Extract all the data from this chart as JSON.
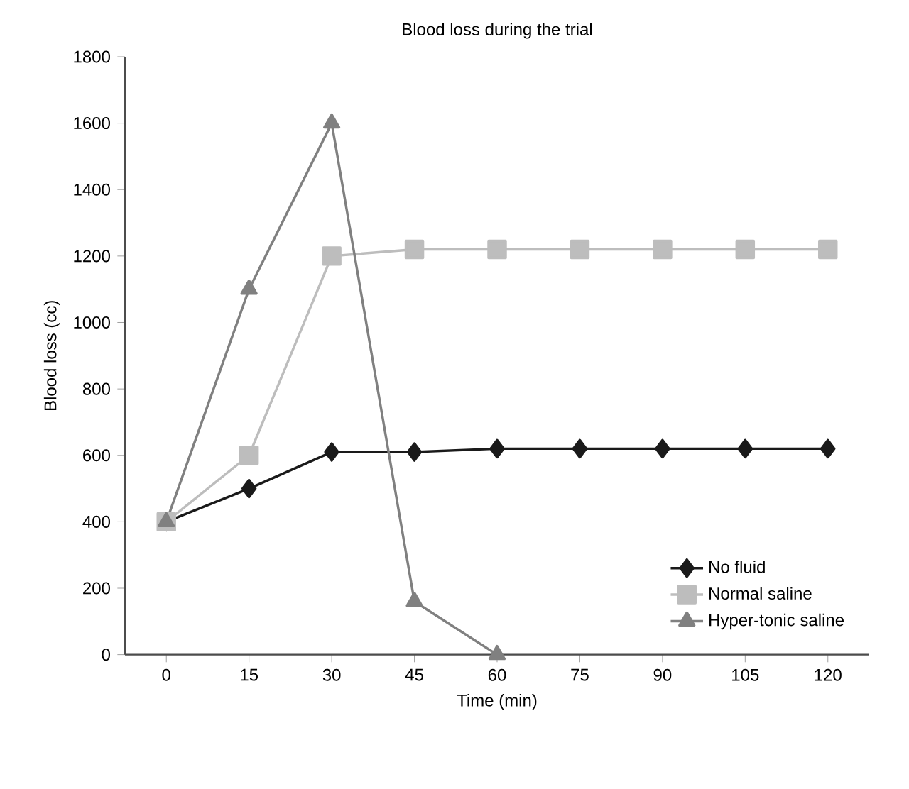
{
  "chart_data": {
    "type": "line",
    "title": "Blood loss during the trial",
    "xlabel": "Time (min)",
    "ylabel": "Blood loss (cc)",
    "categories": [
      "0",
      "15",
      "30",
      "45",
      "60",
      "75",
      "90",
      "105",
      "120"
    ],
    "series": [
      {
        "name": "No fluid",
        "color": "#1a1a1a",
        "marker": "diamond",
        "values": [
          400,
          500,
          610,
          610,
          620,
          620,
          620,
          620,
          620
        ]
      },
      {
        "name": "Normal saline",
        "color": "#bdbdbd",
        "marker": "square",
        "values": [
          400,
          600,
          1200,
          1220,
          1220,
          1220,
          1220,
          1220,
          1220
        ]
      },
      {
        "name": "Hyper-tonic saline",
        "color": "#808080",
        "marker": "triangle",
        "values": [
          400,
          1100,
          1600,
          160,
          0,
          null,
          null,
          null,
          null
        ]
      }
    ],
    "ylim": [
      0,
      1800
    ],
    "yticks": [
      0,
      200,
      400,
      600,
      800,
      1000,
      1200,
      1400,
      1600,
      1800
    ],
    "legend": "bottom right",
    "grid": false,
    "line_style": "solid"
  }
}
